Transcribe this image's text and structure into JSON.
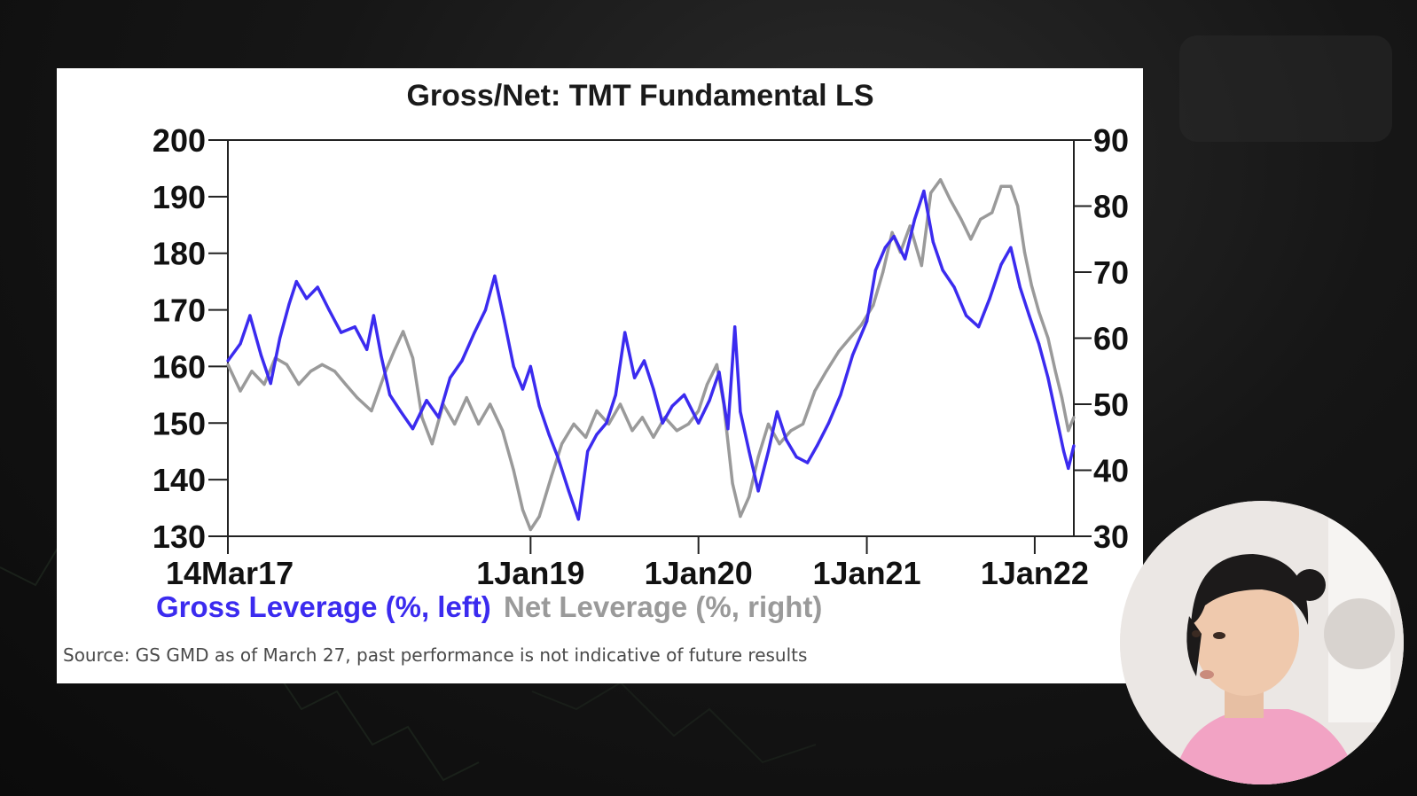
{
  "chart_data": {
    "type": "line",
    "title": "Gross/Net: TMT Fundamental LS",
    "x_tick_labels": [
      "14Mar17",
      "1Jan19",
      "1Jan20",
      "1Jan21",
      "1Jan22"
    ],
    "x_range": [
      "2017-03-14",
      "2022-03-27"
    ],
    "y_left": {
      "lim": [
        130,
        200
      ],
      "ticks": [
        "200",
        "190",
        "180",
        "170",
        "160",
        "150",
        "140",
        "130"
      ]
    },
    "y_right": {
      "lim": [
        30,
        90
      ],
      "ticks": [
        "90",
        "80",
        "70",
        "60",
        "50",
        "40",
        "30"
      ]
    },
    "series": [
      {
        "name": "Gross Leverage (%, left)",
        "axis": "left",
        "color": "#3b2bef",
        "points": [
          [
            "2017-03-14",
            161
          ],
          [
            "2017-04-10",
            164
          ],
          [
            "2017-05-01",
            169
          ],
          [
            "2017-05-25",
            162
          ],
          [
            "2017-06-15",
            157
          ],
          [
            "2017-07-05",
            165
          ],
          [
            "2017-07-25",
            171
          ],
          [
            "2017-08-10",
            175
          ],
          [
            "2017-09-01",
            172
          ],
          [
            "2017-09-25",
            174
          ],
          [
            "2017-10-20",
            170
          ],
          [
            "2017-11-15",
            166
          ],
          [
            "2017-12-15",
            167
          ],
          [
            "2018-01-10",
            163
          ],
          [
            "2018-01-25",
            169
          ],
          [
            "2018-02-10",
            162
          ],
          [
            "2018-03-01",
            155
          ],
          [
            "2018-03-25",
            152
          ],
          [
            "2018-04-20",
            149
          ],
          [
            "2018-05-20",
            154
          ],
          [
            "2018-06-15",
            151
          ],
          [
            "2018-07-10",
            158
          ],
          [
            "2018-08-05",
            161
          ],
          [
            "2018-09-01",
            166
          ],
          [
            "2018-09-25",
            170
          ],
          [
            "2018-10-15",
            176
          ],
          [
            "2018-11-05",
            168
          ],
          [
            "2018-11-25",
            160
          ],
          [
            "2018-12-15",
            156
          ],
          [
            "2019-01-01",
            160
          ],
          [
            "2019-01-20",
            153
          ],
          [
            "2019-02-10",
            148
          ],
          [
            "2019-03-01",
            144
          ],
          [
            "2019-03-25",
            138
          ],
          [
            "2019-04-15",
            133
          ],
          [
            "2019-05-05",
            145
          ],
          [
            "2019-05-25",
            148
          ],
          [
            "2019-06-15",
            150
          ],
          [
            "2019-07-05",
            155
          ],
          [
            "2019-07-25",
            166
          ],
          [
            "2019-08-15",
            158
          ],
          [
            "2019-09-05",
            161
          ],
          [
            "2019-09-25",
            156
          ],
          [
            "2019-10-15",
            150
          ],
          [
            "2019-11-05",
            153
          ],
          [
            "2019-12-01",
            155
          ],
          [
            "2020-01-01",
            150
          ],
          [
            "2020-01-25",
            154
          ],
          [
            "2020-02-15",
            159
          ],
          [
            "2020-03-05",
            149
          ],
          [
            "2020-03-20",
            167
          ],
          [
            "2020-04-01",
            152
          ],
          [
            "2020-04-20",
            145
          ],
          [
            "2020-05-10",
            138
          ],
          [
            "2020-06-01",
            145
          ],
          [
            "2020-06-20",
            152
          ],
          [
            "2020-07-10",
            147
          ],
          [
            "2020-08-01",
            144
          ],
          [
            "2020-08-25",
            143
          ],
          [
            "2020-09-15",
            146
          ],
          [
            "2020-10-10",
            150
          ],
          [
            "2020-11-05",
            155
          ],
          [
            "2020-12-01",
            162
          ],
          [
            "2021-01-01",
            168
          ],
          [
            "2021-01-20",
            177
          ],
          [
            "2021-02-10",
            181
          ],
          [
            "2021-03-01",
            183
          ],
          [
            "2021-03-25",
            179
          ],
          [
            "2021-04-15",
            186
          ],
          [
            "2021-05-05",
            191
          ],
          [
            "2021-05-25",
            182
          ],
          [
            "2021-06-15",
            177
          ],
          [
            "2021-07-10",
            174
          ],
          [
            "2021-08-05",
            169
          ],
          [
            "2021-09-01",
            167
          ],
          [
            "2021-09-25",
            172
          ],
          [
            "2021-10-20",
            178
          ],
          [
            "2021-11-10",
            181
          ],
          [
            "2021-11-30",
            174
          ],
          [
            "2021-12-20",
            169
          ],
          [
            "2022-01-10",
            164
          ],
          [
            "2022-01-30",
            158
          ],
          [
            "2022-02-20",
            150
          ],
          [
            "2022-03-05",
            145
          ],
          [
            "2022-03-15",
            142
          ],
          [
            "2022-03-27",
            146
          ]
        ]
      },
      {
        "name": "Net Leverage (%, right)",
        "axis": "right",
        "color": "#9a9a9a",
        "points": [
          [
            "2017-03-14",
            56
          ],
          [
            "2017-04-10",
            52
          ],
          [
            "2017-05-05",
            55
          ],
          [
            "2017-06-01",
            53
          ],
          [
            "2017-06-25",
            57
          ],
          [
            "2017-07-20",
            56
          ],
          [
            "2017-08-15",
            53
          ],
          [
            "2017-09-10",
            55
          ],
          [
            "2017-10-05",
            56
          ],
          [
            "2017-11-01",
            55
          ],
          [
            "2017-11-25",
            53
          ],
          [
            "2017-12-20",
            51
          ],
          [
            "2018-01-20",
            49
          ],
          [
            "2018-02-20",
            55
          ],
          [
            "2018-03-10",
            58
          ],
          [
            "2018-03-30",
            61
          ],
          [
            "2018-04-20",
            57
          ],
          [
            "2018-05-10",
            48
          ],
          [
            "2018-06-01",
            44
          ],
          [
            "2018-06-25",
            50
          ],
          [
            "2018-07-20",
            47
          ],
          [
            "2018-08-15",
            51
          ],
          [
            "2018-09-10",
            47
          ],
          [
            "2018-10-05",
            50
          ],
          [
            "2018-11-01",
            46
          ],
          [
            "2018-11-25",
            40
          ],
          [
            "2018-12-15",
            34
          ],
          [
            "2019-01-01",
            31
          ],
          [
            "2019-01-20",
            33
          ],
          [
            "2019-02-15",
            39
          ],
          [
            "2019-03-10",
            44
          ],
          [
            "2019-04-05",
            47
          ],
          [
            "2019-05-01",
            45
          ],
          [
            "2019-05-25",
            49
          ],
          [
            "2019-06-20",
            47
          ],
          [
            "2019-07-15",
            50
          ],
          [
            "2019-08-10",
            46
          ],
          [
            "2019-09-01",
            48
          ],
          [
            "2019-09-25",
            45
          ],
          [
            "2019-10-20",
            48
          ],
          [
            "2019-11-15",
            46
          ],
          [
            "2019-12-10",
            47
          ],
          [
            "2020-01-01",
            49
          ],
          [
            "2020-01-20",
            53
          ],
          [
            "2020-02-10",
            56
          ],
          [
            "2020-02-25",
            50
          ],
          [
            "2020-03-15",
            38
          ],
          [
            "2020-04-01",
            33
          ],
          [
            "2020-04-20",
            36
          ],
          [
            "2020-05-10",
            42
          ],
          [
            "2020-06-01",
            47
          ],
          [
            "2020-06-25",
            44
          ],
          [
            "2020-07-20",
            46
          ],
          [
            "2020-08-15",
            47
          ],
          [
            "2020-09-10",
            52
          ],
          [
            "2020-10-05",
            55
          ],
          [
            "2020-11-01",
            58
          ],
          [
            "2020-11-25",
            60
          ],
          [
            "2020-12-20",
            62
          ],
          [
            "2021-01-15",
            65
          ],
          [
            "2021-02-05",
            70
          ],
          [
            "2021-02-25",
            76
          ],
          [
            "2021-03-15",
            73
          ],
          [
            "2021-04-05",
            77
          ],
          [
            "2021-04-30",
            71
          ],
          [
            "2021-05-20",
            82
          ],
          [
            "2021-06-10",
            84
          ],
          [
            "2021-07-01",
            81
          ],
          [
            "2021-07-25",
            78
          ],
          [
            "2021-08-15",
            75
          ],
          [
            "2021-09-05",
            78
          ],
          [
            "2021-09-30",
            79
          ],
          [
            "2021-10-20",
            83
          ],
          [
            "2021-11-10",
            83
          ],
          [
            "2021-11-25",
            80
          ],
          [
            "2021-12-10",
            73
          ],
          [
            "2021-12-25",
            68
          ],
          [
            "2022-01-10",
            64
          ],
          [
            "2022-01-30",
            60
          ],
          [
            "2022-02-15",
            55
          ],
          [
            "2022-03-01",
            51
          ],
          [
            "2022-03-15",
            46
          ],
          [
            "2022-03-27",
            48
          ]
        ]
      }
    ],
    "legend_placement": "bottom-left",
    "grid": false
  },
  "source_note": "Source: GS GMD as of March 27, past performance is not indicative of future results"
}
